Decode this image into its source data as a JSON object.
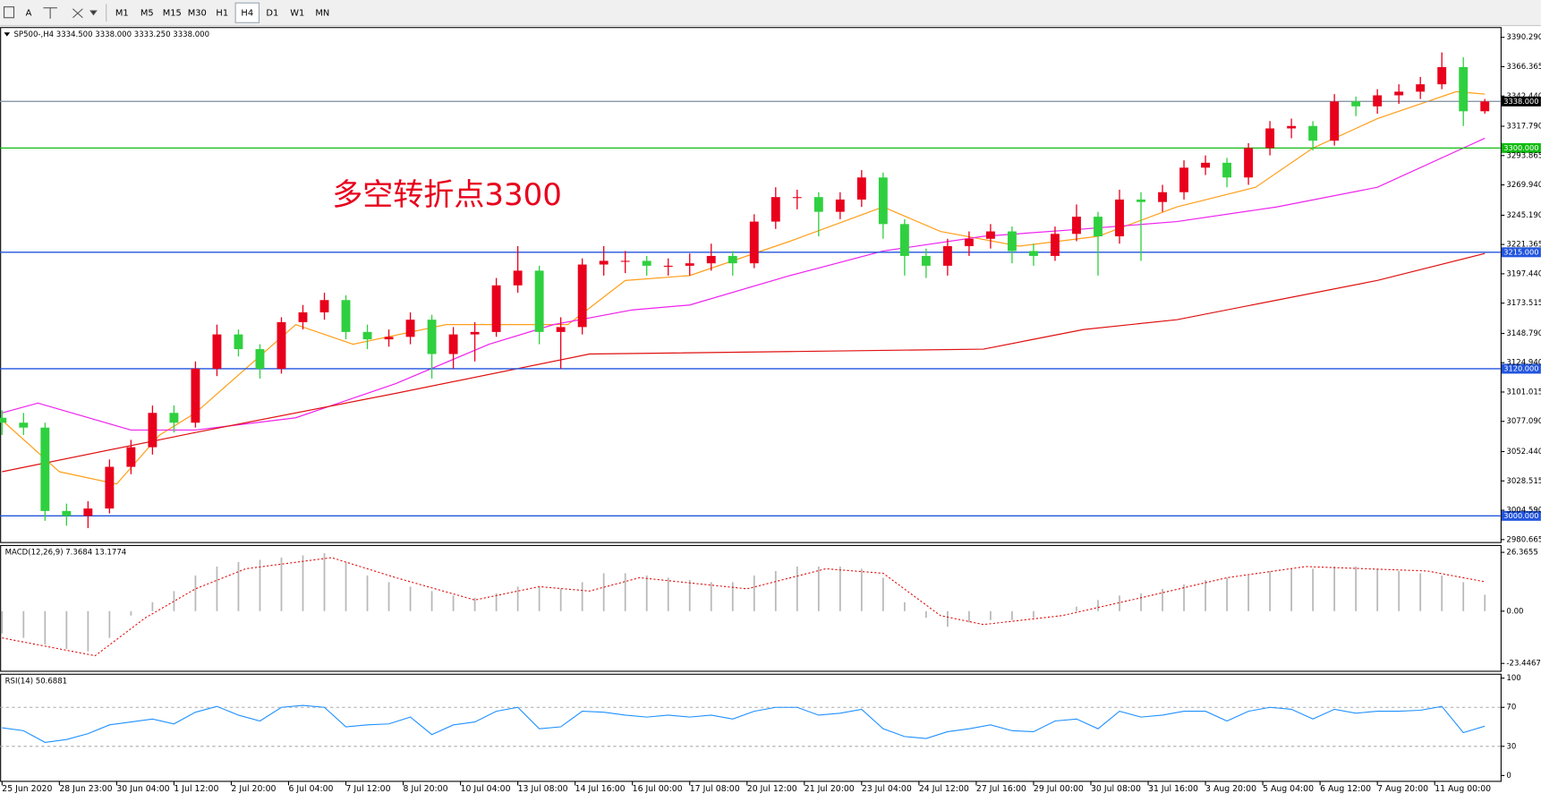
{
  "toolbar": {
    "font_button": "A",
    "timeframes": [
      "M1",
      "M5",
      "M15",
      "M30",
      "H1",
      "H4",
      "D1",
      "W1",
      "MN"
    ],
    "active": 5
  },
  "chart_data": [
    {
      "type": "candlestick",
      "title": "SP500-,H4  3334.500 3338.000 3333.250 3338.000",
      "annotation": "多空转折点3300",
      "up_color": "#e8001c",
      "down_color": "#2fd03f",
      "x": [
        0,
        3,
        6,
        9,
        12,
        15,
        18,
        21,
        24,
        27,
        30,
        33,
        36,
        39,
        42,
        45,
        48,
        51,
        54,
        57,
        60,
        63,
        66,
        69,
        72,
        75,
        78,
        81,
        84,
        87,
        90,
        93,
        96,
        99,
        102,
        105,
        108,
        111,
        114,
        117,
        120,
        123,
        126,
        129,
        132,
        135,
        138,
        141,
        144,
        147,
        150,
        153,
        156,
        159,
        162,
        165,
        168,
        171,
        174,
        177,
        180,
        183,
        186,
        189,
        192,
        195,
        198,
        201,
        204,
        207
      ],
      "open": [
        3080,
        3076,
        3072,
        3004,
        3000,
        3006,
        3040,
        3056,
        3084,
        3076,
        3120,
        3148,
        3136,
        3120,
        3158,
        3166,
        3176,
        3150,
        3144,
        3146,
        3160,
        3132,
        3148,
        3150,
        3188,
        3200,
        3150,
        3154,
        3205,
        3208,
        3208,
        3204,
        3204,
        3206,
        3212,
        3206,
        3240,
        3260,
        3260,
        3248,
        3258,
        3276,
        3238,
        3212,
        3204,
        3220,
        3226,
        3232,
        3216,
        3212,
        3230,
        3244,
        3228,
        3258,
        3256,
        3264,
        3284,
        3288,
        3276,
        3300,
        3316,
        3318,
        3306,
        3338,
        3334,
        3343,
        3346,
        3352,
        3366,
        3330
      ],
      "high": [
        3086,
        3084,
        3076,
        3010,
        3012,
        3046,
        3062,
        3090,
        3090,
        3126,
        3156,
        3152,
        3140,
        3162,
        3172,
        3182,
        3180,
        3156,
        3152,
        3166,
        3164,
        3154,
        3158,
        3194,
        3220,
        3204,
        3162,
        3210,
        3220,
        3216,
        3212,
        3210,
        3214,
        3222,
        3216,
        3246,
        3268,
        3266,
        3264,
        3264,
        3282,
        3280,
        3242,
        3218,
        3226,
        3232,
        3238,
        3236,
        3222,
        3236,
        3254,
        3248,
        3266,
        3264,
        3270,
        3290,
        3294,
        3292,
        3304,
        3322,
        3324,
        3322,
        3344,
        3342,
        3348,
        3352,
        3358,
        3378,
        3374,
        3340
      ],
      "low": [
        3066,
        3066,
        2996,
        2992,
        2990,
        3002,
        3034,
        3050,
        3068,
        3072,
        3114,
        3130,
        3112,
        3116,
        3152,
        3160,
        3144,
        3136,
        3138,
        3140,
        3112,
        3120,
        3126,
        3146,
        3182,
        3140,
        3120,
        3148,
        3196,
        3198,
        3196,
        3196,
        3196,
        3200,
        3196,
        3202,
        3234,
        3250,
        3228,
        3242,
        3252,
        3226,
        3196,
        3194,
        3196,
        3212,
        3218,
        3206,
        3204,
        3208,
        3224,
        3196,
        3222,
        3208,
        3248,
        3258,
        3278,
        3268,
        3270,
        3294,
        3308,
        3298,
        3302,
        3326,
        3328,
        3336,
        3340,
        3348,
        3318,
        3328
      ],
      "close": [
        3076,
        3072,
        3004,
        3000,
        3006,
        3040,
        3056,
        3084,
        3076,
        3120,
        3148,
        3136,
        3120,
        3158,
        3166,
        3176,
        3150,
        3144,
        3146,
        3160,
        3132,
        3148,
        3150,
        3188,
        3200,
        3150,
        3154,
        3205,
        3208,
        3208,
        3204,
        3204,
        3206,
        3212,
        3206,
        3240,
        3260,
        3260,
        3248,
        3258,
        3276,
        3238,
        3212,
        3204,
        3220,
        3226,
        3232,
        3216,
        3212,
        3230,
        3244,
        3228,
        3258,
        3256,
        3264,
        3284,
        3288,
        3276,
        3300,
        3316,
        3318,
        3306,
        3338,
        3334,
        3343,
        3346,
        3352,
        3366,
        3330,
        3338
      ],
      "ma": [
        {
          "color": "#ff9f1a",
          "x": [
            0,
            8,
            16,
            22,
            27,
            41,
            49,
            62,
            71,
            79,
            87,
            96,
            110,
            123,
            131,
            142,
            153,
            164,
            175,
            183,
            192,
            203,
            207
          ],
          "values": [
            3078,
            3036,
            3026,
            3066,
            3084,
            3156,
            3140,
            3156,
            3156,
            3156,
            3192,
            3196,
            3224,
            3252,
            3232,
            3220,
            3228,
            3252,
            3268,
            3300,
            3324,
            3346,
            3344
          ]
        },
        {
          "color": "#ee22ee",
          "x": [
            0,
            5,
            18,
            27,
            41,
            55,
            68,
            77,
            88,
            96,
            110,
            123,
            137,
            151,
            164,
            178,
            192,
            207
          ],
          "values": [
            3084,
            3092,
            3070,
            3070,
            3080,
            3108,
            3140,
            3156,
            3168,
            3172,
            3196,
            3216,
            3228,
            3234,
            3240,
            3252,
            3268,
            3308
          ]
        },
        {
          "color": "#e01010",
          "x": [
            0,
            27,
            55,
            82,
            110,
            137,
            151,
            164,
            178,
            192,
            207
          ],
          "values": [
            3036,
            3068,
            3100,
            3132,
            3134,
            3136,
            3152,
            3160,
            3176,
            3192,
            3214
          ]
        }
      ],
      "hlines": [
        {
          "value": 3338,
          "label": "3338.000",
          "color": "#8899aa",
          "box": "#000000"
        },
        {
          "value": 3300,
          "label": "3300.000",
          "color": "#11bb11",
          "box": "#11bb11"
        },
        {
          "value": 3215,
          "label": "3215.000",
          "color": "#2255dd",
          "box": "#2255dd"
        },
        {
          "value": 3120,
          "label": "3120.000",
          "color": "#2255dd",
          "box": "#2255dd"
        },
        {
          "value": 3000,
          "label": "3000.000",
          "color": "#2255dd",
          "box": "#2255dd"
        }
      ],
      "xlim": [
        -0.27,
        209.2
      ],
      "ylim": [
        2978.26,
        3398.3
      ],
      "yticks": [
        {
          "value": 3390.29,
          "label": "3390.290"
        },
        {
          "value": 3366.365,
          "label": "3366.365"
        },
        {
          "value": 3342.44,
          "label": "3342.440"
        },
        {
          "value": 3317.79,
          "label": "3317.790"
        },
        {
          "value": 3293.865,
          "label": "3293.865"
        },
        {
          "value": 3269.94,
          "label": "3269.940"
        },
        {
          "value": 3245.19,
          "label": "3245.190"
        },
        {
          "value": 3221.365,
          "label": "3221.365"
        },
        {
          "value": 3197.44,
          "label": "3197.440"
        },
        {
          "value": 3173.515,
          "label": "3173.515"
        },
        {
          "value": 3148.79,
          "label": "3148.790"
        },
        {
          "value": 3124.94,
          "label": "3124.940"
        },
        {
          "value": 3101.015,
          "label": "3101.015"
        },
        {
          "value": 3077.09,
          "label": "3077.090"
        },
        {
          "value": 3052.44,
          "label": "3052.440"
        },
        {
          "value": 3028.515,
          "label": "3028.515"
        },
        {
          "value": 3004.59,
          "label": "3004.590"
        },
        {
          "value": 2980.665,
          "label": "2980.665"
        }
      ],
      "xticks": [
        {
          "value": 0,
          "label": "25 Jun 2020"
        },
        {
          "value": 8,
          "label": "28 Jun 23:00"
        },
        {
          "value": 16,
          "label": "30 Jun 04:00"
        },
        {
          "value": 24,
          "label": "1 Jul 12:00"
        },
        {
          "value": 32,
          "label": "2 Jul 20:00"
        },
        {
          "value": 40,
          "label": "6 Jul 04:00"
        },
        {
          "value": 48,
          "label": "7 Jul 12:00"
        },
        {
          "value": 56,
          "label": "8 Jul 20:00"
        },
        {
          "value": 64,
          "label": "10 Jul 04:00"
        },
        {
          "value": 72,
          "label": "13 Jul 08:00"
        },
        {
          "value": 80,
          "label": "14 Jul 16:00"
        },
        {
          "value": 88,
          "label": "16 Jul 00:00"
        },
        {
          "value": 96,
          "label": "17 Jul 08:00"
        },
        {
          "value": 104,
          "label": "20 Jul 12:00"
        },
        {
          "value": 112,
          "label": "21 Jul 20:00"
        },
        {
          "value": 120,
          "label": "23 Jul 04:00"
        },
        {
          "value": 128,
          "label": "24 Jul 12:00"
        },
        {
          "value": 136,
          "label": "27 Jul 16:00"
        },
        {
          "value": 144,
          "label": "29 Jul 00:00"
        },
        {
          "value": 152,
          "label": "30 Jul 08:00"
        },
        {
          "value": 160,
          "label": "31 Jul 16:00"
        },
        {
          "value": 168,
          "label": "3 Aug 20:00"
        },
        {
          "value": 176,
          "label": "5 Aug 04:00"
        },
        {
          "value": 184,
          "label": "6 Aug 12:00"
        },
        {
          "value": 192,
          "label": "7 Aug 20:00"
        },
        {
          "value": 200,
          "label": "11 Aug 00:00"
        }
      ]
    },
    {
      "type": "macd",
      "title": "MACD(12,26,9) 7.3684 13.1774",
      "histogram_color": "#b8b8b8",
      "x": [
        0,
        3,
        6,
        9,
        12,
        15,
        18,
        21,
        24,
        27,
        30,
        33,
        36,
        39,
        42,
        45,
        48,
        51,
        54,
        57,
        60,
        63,
        66,
        69,
        72,
        75,
        78,
        81,
        84,
        87,
        90,
        93,
        96,
        99,
        102,
        105,
        108,
        111,
        114,
        117,
        120,
        123,
        126,
        129,
        132,
        135,
        138,
        141,
        144,
        147,
        150,
        153,
        156,
        159,
        162,
        165,
        168,
        171,
        174,
        177,
        180,
        183,
        186,
        189,
        192,
        195,
        198,
        201,
        204,
        207
      ],
      "values": [
        -10,
        -12,
        -15,
        -17,
        -18,
        -12,
        -2,
        4,
        9,
        16,
        20,
        22,
        23,
        24,
        25,
        26,
        22,
        16,
        13,
        11,
        9,
        7,
        6,
        8,
        11,
        11,
        10,
        13,
        17,
        17,
        16,
        15,
        14,
        13,
        13,
        16,
        18,
        20,
        20,
        20,
        19,
        15,
        4,
        -3,
        -7,
        -5,
        -4,
        -4,
        -3,
        0,
        2,
        5,
        7,
        8,
        10,
        12,
        14,
        15,
        16,
        18,
        19,
        19,
        20,
        20,
        19,
        18,
        17,
        16,
        13,
        7.3684
      ],
      "signal": {
        "color": "#e01010",
        "x": [
          0,
          13,
          20,
          27,
          34,
          46,
          55,
          66,
          75,
          82,
          89,
          104,
          115,
          123,
          131,
          137,
          148,
          159,
          171,
          182,
          199,
          207
        ],
        "values": [
          -12,
          -20,
          -3,
          10,
          19,
          24,
          15,
          5,
          11,
          9,
          15,
          10,
          19,
          17,
          -2,
          -6,
          -2,
          6,
          15,
          20,
          18,
          13.1774
        ]
      },
      "ylim": [
        -26.97,
        29.45
      ],
      "yticks": [
        26.3655,
        {
          "value": 0,
          "label": "0.00"
        },
        -23.4467
      ]
    },
    {
      "type": "line",
      "title": "RSI(14) 50.6881",
      "color": "#1e90ff",
      "x": [
        0,
        3,
        6,
        9,
        12,
        15,
        18,
        21,
        24,
        27,
        30,
        33,
        36,
        39,
        42,
        45,
        48,
        51,
        54,
        57,
        60,
        63,
        66,
        69,
        72,
        75,
        78,
        81,
        84,
        87,
        90,
        93,
        96,
        99,
        102,
        105,
        108,
        111,
        114,
        117,
        120,
        123,
        126,
        129,
        132,
        135,
        138,
        141,
        144,
        147,
        150,
        153,
        156,
        159,
        162,
        165,
        168,
        171,
        174,
        177,
        180,
        183,
        186,
        189,
        192,
        195,
        198,
        201,
        204,
        207
      ],
      "values": [
        49,
        46,
        34,
        37,
        43,
        52,
        55,
        58,
        53,
        65,
        71,
        62,
        56,
        70,
        72,
        70,
        50,
        52,
        53,
        60,
        42,
        52,
        55,
        66,
        70,
        48,
        50,
        66,
        65,
        62,
        60,
        62,
        60,
        62,
        58,
        66,
        70,
        70,
        62,
        64,
        68,
        48,
        40,
        38,
        45,
        48,
        52,
        46,
        45,
        56,
        58,
        48,
        66,
        60,
        62,
        66,
        66,
        56,
        66,
        70,
        68,
        58,
        68,
        64,
        66,
        66,
        67,
        71,
        44,
        50.6881
      ],
      "dashed_levels": [
        30,
        70
      ],
      "ylim": [
        -6,
        104
      ],
      "yticks": [
        100,
        70,
        30,
        0
      ]
    }
  ]
}
